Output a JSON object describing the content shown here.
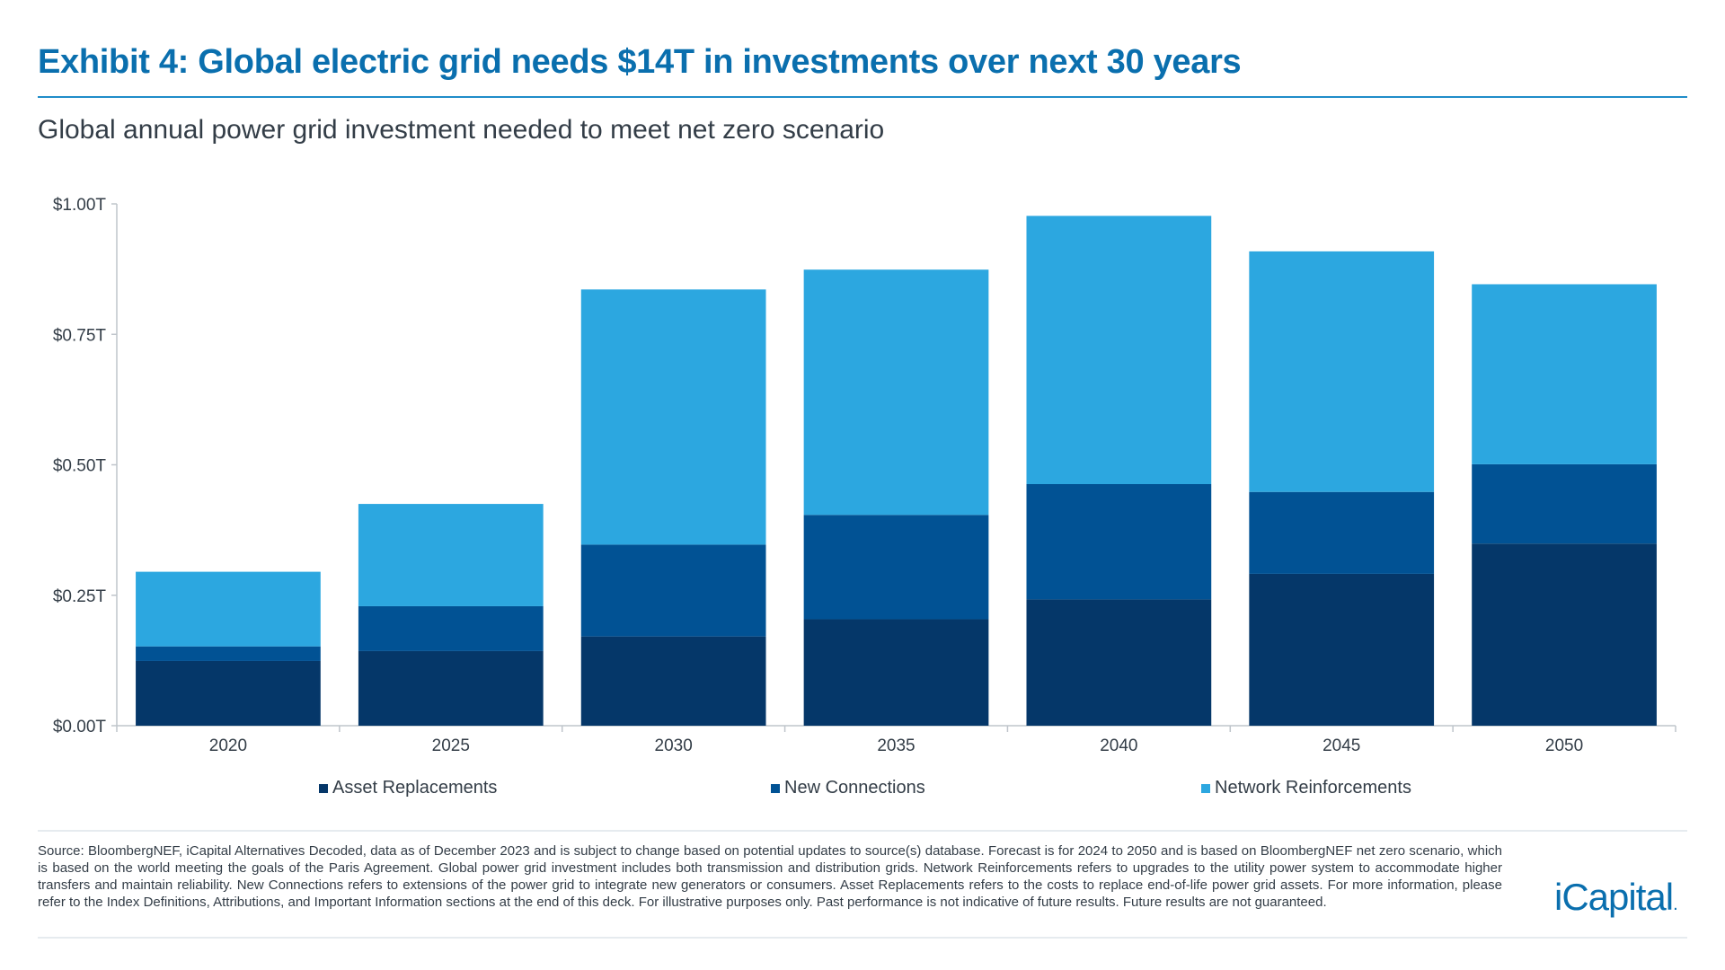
{
  "title": "Exhibit 4: Global electric grid needs $14T in investments over next 30 years",
  "subtitle": "Global annual power grid investment needed to meet net zero scenario",
  "chart_data": {
    "type": "bar",
    "stacked": true,
    "categories": [
      "2020",
      "2025",
      "2030",
      "2035",
      "2040",
      "2045",
      "2050"
    ],
    "series": [
      {
        "name": "Asset Replacements",
        "color": "#053769",
        "values": [
          0.124,
          0.143,
          0.171,
          0.204,
          0.242,
          0.291,
          0.349
        ]
      },
      {
        "name": "New Connections",
        "color": "#015294",
        "values": [
          0.028,
          0.086,
          0.176,
          0.2,
          0.221,
          0.157,
          0.152
        ]
      },
      {
        "name": "Network Reinforcements",
        "color": "#2ca7e0",
        "values": [
          0.143,
          0.196,
          0.489,
          0.47,
          0.514,
          0.461,
          0.345
        ]
      }
    ],
    "ylim": [
      0,
      1.0
    ],
    "yticks": [
      0,
      0.25,
      0.5,
      0.75,
      1.0
    ],
    "ytick_labels": [
      "$0.00T",
      "$0.25T",
      "$0.50T",
      "$0.75T",
      "$1.00T"
    ],
    "xlabel": "",
    "ylabel": "",
    "grid": false,
    "legend_position": "bottom"
  },
  "footnote": "Source: BloombergNEF, iCapital Alternatives Decoded, data as of December 2023 and is subject to change based on potential updates to source(s) database. Forecast is for 2024 to 2050 and is based on BloombergNEF net zero scenario, which is based on the world meeting the goals of the Paris Agreement. Global power grid investment includes both transmission and distribution grids. Network Reinforcements refers to upgrades to the utility power system to accommodate higher transfers and maintain reliability. New Connections refers to extensions of the power grid to integrate new generators or consumers. Asset Replacements refers to the costs to replace end-of-life power grid assets. For more information, please refer to the Index Definitions, Attributions, and Important Information sections at the end of this deck. For illustrative purposes only. Past performance is not indicative of future results. Future results are not guaranteed.",
  "logo": "iCapital."
}
